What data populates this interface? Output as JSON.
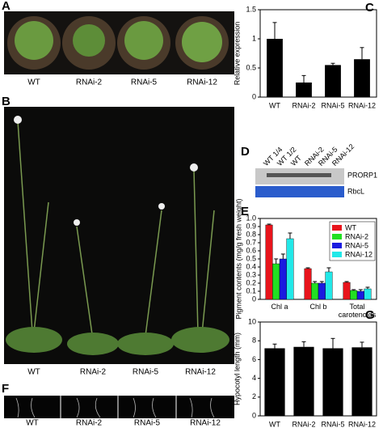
{
  "panel_letters": [
    "A",
    "B",
    "C",
    "D",
    "E",
    "F",
    "G"
  ],
  "photo_labels": [
    "WT",
    "RNAi-2",
    "RNAi-5",
    "RNAi-12"
  ],
  "blot": {
    "lanes": [
      "WT 1/4",
      "WT 1/2",
      "WT",
      "RNAi-2",
      "RNAi-5",
      "RNAi-12"
    ],
    "bands": [
      "PRORP1",
      "RbcL"
    ]
  },
  "chart_data": [
    {
      "type": "bar",
      "y_label": "Relative expression",
      "categories": [
        "WT",
        "RNAi-2",
        "RNAi-5",
        "RNAi-12"
      ],
      "values": [
        1.0,
        0.25,
        0.55,
        0.65
      ],
      "errors": [
        0.28,
        0.12,
        0.03,
        0.2
      ],
      "color": "#000000",
      "ylim": [
        0,
        1.5
      ],
      "yticks": [
        0,
        0.5,
        1,
        1.5
      ]
    },
    {
      "type": "grouped_bar",
      "y_label": "Pigment contents (mg/g fresh weight)",
      "categories": [
        "Chl a",
        "Chl b",
        "Total carotenoids"
      ],
      "series": [
        {
          "name": "WT",
          "color": "#e8141c",
          "values": [
            0.92,
            0.38,
            0.21
          ],
          "errors": [
            0.01,
            0.01,
            0.01
          ]
        },
        {
          "name": "RNAi-2",
          "color": "#22e022",
          "values": [
            0.44,
            0.2,
            0.11
          ],
          "errors": [
            0.06,
            0.02,
            0.01
          ]
        },
        {
          "name": "RNAi-5",
          "color": "#1a1ae0",
          "values": [
            0.5,
            0.2,
            0.1
          ],
          "errors": [
            0.06,
            0.02,
            0.02
          ]
        },
        {
          "name": "RNAi-12",
          "color": "#22e8e8",
          "values": [
            0.75,
            0.34,
            0.13
          ],
          "errors": [
            0.07,
            0.05,
            0.02
          ]
        }
      ],
      "legend": "upper right",
      "ylim": [
        0,
        1
      ],
      "yticks": [
        0,
        0.1,
        0.2,
        0.3,
        0.4,
        0.5,
        0.6,
        0.7,
        0.8,
        0.9,
        {
          "value": 1,
          "label": "1.0"
        }
      ]
    },
    {
      "type": "bar",
      "y_label": "Hypocotyl length (mm)",
      "categories": [
        "WT",
        "RNAi-2",
        "RNAi-5",
        "RNAi-12"
      ],
      "values": [
        7.2,
        7.35,
        7.2,
        7.3
      ],
      "errors": [
        0.45,
        0.55,
        1.05,
        0.55
      ],
      "color": "#000000",
      "ylim": [
        0,
        10
      ],
      "yticks": [
        0,
        2,
        4,
        6,
        8,
        10
      ]
    }
  ]
}
